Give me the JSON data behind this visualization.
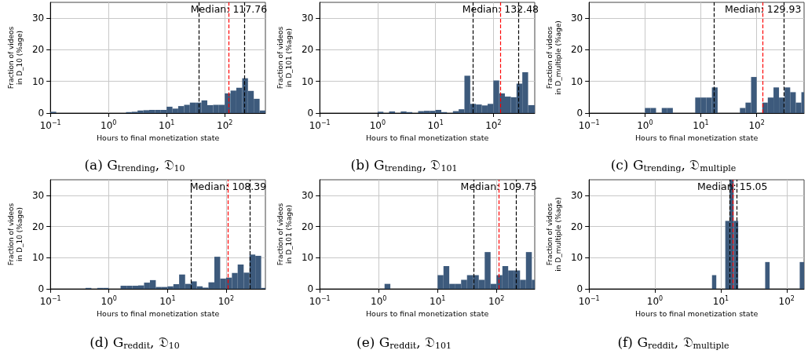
{
  "chart_data": [
    {
      "type": "histogram",
      "title": "(a) G$_{trending}$, 𝔇$_{10}$",
      "xlabel": "Hours to final monetization state",
      "ylabel": "Fraction of videos\nin D_10 (%age)",
      "log": "x",
      "grid": true,
      "color": "#3d5a7c",
      "xlim": [
        0.1,
        501
      ],
      "ylim": [
        0,
        35
      ],
      "yticks": [
        0,
        10,
        20,
        30
      ],
      "xticks": [
        {
          "value": 0.1,
          "label": "10$^{−1}$"
        },
        {
          "value": 1,
          "label": "10$^{0}$"
        },
        {
          "value": 10,
          "label": "10$^{1}$"
        },
        {
          "value": 100,
          "label": "10$^{2}$"
        }
      ],
      "bins": [
        0.1,
        0.126,
        2,
        2.51,
        3.16,
        3.98,
        5.01,
        6.31,
        7.94,
        10,
        12.6,
        15.8,
        20,
        25.1,
        31.6,
        39.8,
        50.1,
        63.1,
        79.4,
        100,
        126,
        158,
        200,
        251,
        316,
        398,
        501
      ],
      "values": [
        0.4,
        0,
        0.3,
        0.4,
        0.8,
        0.9,
        1.0,
        1.0,
        1.0,
        2.0,
        1.4,
        2.2,
        2.6,
        3.3,
        3.3,
        4.0,
        2.5,
        2.6,
        2.6,
        6.2,
        7.1,
        8.0,
        11.0,
        7.0,
        4.5,
        0.8
      ],
      "ref_lines": [
        {
          "axis": "x",
          "value": 35.8,
          "color": "#000000",
          "line_style": "dashed"
        },
        {
          "axis": "x",
          "value": 117.76,
          "color": "#ff0000",
          "line_style": "dashed",
          "label": "Median: 117.76"
        },
        {
          "axis": "x",
          "value": 216,
          "color": "#000000",
          "line_style": "dashed"
        }
      ]
    },
    {
      "type": "histogram",
      "title": "(b) G$_{trending}$, 𝔇$_{101}$",
      "xlabel": "Hours to final monetization state",
      "ylabel": "Fraction of videos\nin D_101 (%age)",
      "log": "x",
      "grid": true,
      "color": "#3d5a7c",
      "xlim": [
        0.1,
        518
      ],
      "ylim": [
        0,
        35
      ],
      "yticks": [
        0,
        10,
        20,
        30
      ],
      "xticks": [
        {
          "value": 0.1,
          "label": "10$^{−1}$"
        },
        {
          "value": 1,
          "label": "10$^{0}$"
        },
        {
          "value": 10,
          "label": "10$^{1}$"
        },
        {
          "value": 100,
          "label": "10$^{2}$"
        }
      ],
      "bins": [
        1,
        1.26,
        1.58,
        2,
        2.51,
        3.16,
        3.98,
        5.01,
        6.31,
        7.94,
        10,
        12.6,
        15.8,
        20,
        25.1,
        31.6,
        39.8,
        50.1,
        63.1,
        79.4,
        100,
        126,
        158,
        200,
        251,
        316,
        398,
        518
      ],
      "values": [
        0.4,
        0,
        0.5,
        0,
        0.5,
        0.3,
        0,
        0.6,
        0.7,
        0.7,
        1.0,
        0.3,
        0,
        0.6,
        1.2,
        11.8,
        2.9,
        2.7,
        2.4,
        2.9,
        10.3,
        6.2,
        5.2,
        5.0,
        9.3,
        12.9,
        2.5
      ],
      "ref_lines": [
        {
          "axis": "x",
          "value": 44.7,
          "color": "#000000",
          "line_style": "dashed"
        },
        {
          "axis": "x",
          "value": 132.48,
          "color": "#ff0000",
          "line_style": "dashed",
          "label": "Median: 132.48"
        },
        {
          "axis": "x",
          "value": 275,
          "color": "#000000",
          "line_style": "dashed"
        }
      ]
    },
    {
      "type": "histogram",
      "title": "(c) G$_{trending}$, 𝔇$_{multiple}$",
      "xlabel": "Hours to final monetization state",
      "ylabel": "Fraction of videos\nin D_multiple (%age)",
      "log": "x",
      "grid": true,
      "color": "#3d5a7c",
      "xlim": [
        0.1,
        705
      ],
      "ylim": [
        0,
        35
      ],
      "yticks": [
        0,
        10,
        20,
        30
      ],
      "xticks": [
        {
          "value": 0.1,
          "label": "10$^{−1}$"
        },
        {
          "value": 1,
          "label": "10$^{0}$"
        },
        {
          "value": 10,
          "label": "10$^{1}$"
        },
        {
          "value": 100,
          "label": "10$^{2}$"
        }
      ],
      "bins": [
        1,
        1.26,
        1.58,
        2,
        2.51,
        3.16,
        7.94,
        10,
        12.6,
        15.8,
        20,
        50.1,
        63.1,
        79.4,
        100,
        126,
        158,
        200,
        251,
        316,
        398,
        501,
        631,
        705
      ],
      "values": [
        1.6,
        1.6,
        0,
        1.6,
        1.6,
        0,
        4.9,
        4.9,
        4.9,
        8.1,
        0,
        1.6,
        3.3,
        11.4,
        0,
        3.3,
        4.9,
        8.1,
        4.9,
        8.1,
        6.6,
        3.3,
        6.6
      ],
      "ref_lines": [
        {
          "axis": "x",
          "value": 17.1,
          "color": "#000000",
          "line_style": "dashed"
        },
        {
          "axis": "x",
          "value": 129.93,
          "color": "#ff0000",
          "line_style": "dashed",
          "label": "Median: 129.93"
        },
        {
          "axis": "x",
          "value": 307,
          "color": "#000000",
          "line_style": "dashed"
        }
      ]
    },
    {
      "type": "histogram",
      "title": "(d) G$_{reddit}$, 𝔇$_{10}$",
      "xlabel": "Hours to final monetization state",
      "ylabel": "Fraction of videos\nin D_10 (%age)",
      "log": "x",
      "grid": true,
      "color": "#3d5a7c",
      "xlim": [
        0.1,
        470
      ],
      "ylim": [
        0,
        35
      ],
      "yticks": [
        0,
        10,
        20,
        30
      ],
      "xticks": [
        {
          "value": 0.1,
          "label": "10$^{−1}$"
        },
        {
          "value": 1,
          "label": "10$^{0}$"
        },
        {
          "value": 10,
          "label": "10$^{1}$"
        },
        {
          "value": 100,
          "label": "10$^{2}$"
        }
      ],
      "bins": [
        0.398,
        0.501,
        0.631,
        0.794,
        1,
        1.58,
        2,
        2.51,
        3.16,
        3.98,
        5.01,
        6.31,
        7.94,
        10,
        12.6,
        15.8,
        20,
        25.1,
        31.6,
        39.8,
        50.1,
        63.1,
        79.4,
        100,
        126,
        158,
        200,
        251,
        316,
        398,
        470
      ],
      "values": [
        0.3,
        0,
        0.3,
        0.3,
        0,
        1.0,
        1.0,
        1.0,
        1.1,
        2.0,
        2.8,
        0.6,
        0.6,
        0.8,
        1.5,
        4.6,
        1.6,
        2.4,
        0.8,
        0.4,
        2.1,
        10.3,
        3.3,
        3.6,
        5.1,
        7.8,
        5.2,
        11.0,
        10.6,
        0.3
      ],
      "ref_lines": [
        {
          "axis": "x",
          "value": 25.1,
          "color": "#000000",
          "line_style": "dashed"
        },
        {
          "axis": "x",
          "value": 108.39,
          "color": "#ff0000",
          "line_style": "dashed",
          "label": "Median: 108.39"
        },
        {
          "axis": "x",
          "value": 259,
          "color": "#000000",
          "line_style": "dashed"
        }
      ]
    },
    {
      "type": "histogram",
      "title": "(e) G$_{reddit}$, 𝔇$_{101}$",
      "xlabel": "Hours to final monetization state",
      "ylabel": "Fraction of videos\nin D_101 (%age)",
      "log": "x",
      "grid": true,
      "color": "#3d5a7c",
      "xlim": [
        0.1,
        446
      ],
      "ylim": [
        0,
        35
      ],
      "yticks": [
        0,
        10,
        20,
        30
      ],
      "xticks": [
        {
          "value": 0.1,
          "label": "10$^{−1}$"
        },
        {
          "value": 1,
          "label": "10$^{0}$"
        },
        {
          "value": 10,
          "label": "10$^{1}$"
        },
        {
          "value": 100,
          "label": "10$^{2}$"
        }
      ],
      "bins": [
        1.26,
        1.58,
        10,
        12.6,
        15.8,
        20,
        25.1,
        31.6,
        39.8,
        50.1,
        63.1,
        79.4,
        100,
        126,
        158,
        200,
        251,
        316,
        398,
        446
      ],
      "values": [
        1.6,
        0,
        4.4,
        7.3,
        1.6,
        1.6,
        2.9,
        4.4,
        4.4,
        2.9,
        11.8,
        1.6,
        4.4,
        7.3,
        5.9,
        5.9,
        2.9,
        11.8,
        2.9
      ],
      "ref_lines": [
        {
          "axis": "x",
          "value": 41.4,
          "color": "#000000",
          "line_style": "dashed"
        },
        {
          "axis": "x",
          "value": 109.75,
          "color": "#ff0000",
          "line_style": "dashed",
          "label": "Median: 109.75"
        },
        {
          "axis": "x",
          "value": 215,
          "color": "#000000",
          "line_style": "dashed"
        }
      ]
    },
    {
      "type": "histogram",
      "title": "(f) G$_{reddit}$, 𝔇$_{multiple}$",
      "xlabel": "Hours to final monetization state",
      "ylabel": "Fraction of videos\nin D_multiple (%age)",
      "log": "x",
      "grid": true,
      "color": "#3d5a7c",
      "xlim": [
        0.1,
        184
      ],
      "ylim": [
        0,
        35
      ],
      "yticks": [
        0,
        10,
        20,
        30
      ],
      "xticks": [
        {
          "value": 0.1,
          "label": "10$^{−1}$"
        },
        {
          "value": 1,
          "label": "10$^{0}$"
        },
        {
          "value": 10,
          "label": "10$^{1}$"
        },
        {
          "value": 100,
          "label": "10$^{2}$"
        }
      ],
      "bins": [
        7.36,
        8.55,
        11.7,
        13.6,
        15.7,
        18.4,
        47.2,
        55.2,
        158,
        184
      ],
      "values": [
        4.4,
        0,
        21.8,
        35,
        21.8,
        0,
        8.6,
        0,
        8.6
      ],
      "ref_lines": [
        {
          "axis": "x",
          "value": 13.6,
          "color": "#000000",
          "line_style": "dashed"
        },
        {
          "axis": "x",
          "value": 15.05,
          "color": "#ff0000",
          "line_style": "dashed",
          "label": "Median: 15.05"
        },
        {
          "axis": "x",
          "value": 17.6,
          "color": "#000000",
          "line_style": "dashed"
        }
      ]
    }
  ]
}
